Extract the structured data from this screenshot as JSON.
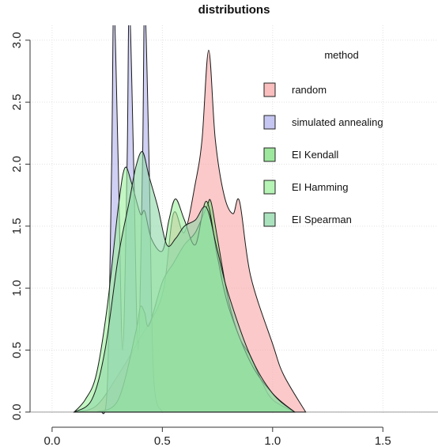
{
  "chart_data": {
    "type": "area",
    "title": "distributions",
    "xlabel": "",
    "ylabel": "",
    "xlim": [
      -0.1,
      1.75
    ],
    "ylim": [
      -0.02,
      3.12
    ],
    "grid": true,
    "x_ticks": [
      "0.0",
      "0.5",
      "1.0",
      "1.5"
    ],
    "x_tick_values": [
      0.0,
      0.5,
      1.0,
      1.5
    ],
    "y_ticks": [
      "0.0",
      "0.5",
      "1.0",
      "1.5",
      "2.0",
      "2.5",
      "3.0"
    ],
    "y_tick_values": [
      0.0,
      0.5,
      1.0,
      1.5,
      2.0,
      2.5,
      3.0
    ],
    "legend": {
      "title": "method",
      "placement": "top-right",
      "entries": [
        "random",
        "simulated annealing",
        "EI Kendall",
        "EI Hamming",
        "EI Spearman"
      ]
    },
    "series": [
      {
        "name": "random",
        "color": "#f8a8a8",
        "x": [
          0.1,
          0.2,
          0.3,
          0.4,
          0.5,
          0.55,
          0.6,
          0.65,
          0.68,
          0.71,
          0.74,
          0.78,
          0.82,
          0.85,
          0.9,
          1.0,
          1.05,
          1.15
        ],
        "y": [
          0.0,
          0.05,
          0.3,
          0.6,
          0.95,
          1.6,
          1.45,
          1.85,
          2.2,
          2.92,
          2.2,
          1.75,
          1.6,
          1.7,
          1.1,
          0.55,
          0.3,
          0.0
        ]
      },
      {
        "name": "simulated annealing",
        "color": "#b3b3ee",
        "x": [
          0.22,
          0.25,
          0.27,
          0.28,
          0.3,
          0.32,
          0.34,
          0.35,
          0.37,
          0.39,
          0.41,
          0.42,
          0.44,
          0.46,
          0.5
        ],
        "y": [
          0.0,
          0.2,
          2.0,
          3.3,
          2.0,
          0.5,
          2.0,
          3.3,
          2.0,
          0.5,
          2.0,
          3.3,
          2.0,
          0.3,
          0.0
        ]
      },
      {
        "name": "EI Kendall",
        "color": "#7ee07e",
        "x": [
          0.2,
          0.3,
          0.38,
          0.4,
          0.42,
          0.44,
          0.5,
          0.55,
          0.6,
          0.65,
          0.7,
          0.72,
          0.75,
          0.8,
          0.85,
          0.9,
          0.95,
          1.0,
          1.1
        ],
        "y": [
          0.0,
          0.1,
          0.65,
          0.85,
          0.8,
          0.7,
          1.05,
          1.2,
          1.35,
          1.45,
          1.65,
          1.7,
          1.4,
          0.9,
          0.6,
          0.45,
          0.25,
          0.1,
          0.0
        ]
      },
      {
        "name": "EI Hamming",
        "color": "#9ef09e",
        "x": [
          0.1,
          0.15,
          0.2,
          0.25,
          0.3,
          0.33,
          0.36,
          0.4,
          0.42,
          0.45,
          0.5,
          0.53,
          0.56,
          0.6,
          0.65,
          0.7,
          0.75,
          0.8,
          0.9,
          1.0,
          1.1
        ],
        "y": [
          0.0,
          0.1,
          0.3,
          0.85,
          1.65,
          1.97,
          1.85,
          1.6,
          1.62,
          1.4,
          1.3,
          1.55,
          1.72,
          1.55,
          1.35,
          1.7,
          1.25,
          0.85,
          0.4,
          0.15,
          0.0
        ]
      },
      {
        "name": "EI Spearman",
        "color": "#8fd8a8",
        "x": [
          0.1,
          0.18,
          0.24,
          0.3,
          0.35,
          0.38,
          0.41,
          0.44,
          0.48,
          0.52,
          0.56,
          0.6,
          0.65,
          0.7,
          0.75,
          0.8,
          0.9,
          1.0,
          1.1
        ],
        "y": [
          0.0,
          0.1,
          0.5,
          1.25,
          1.7,
          1.98,
          2.1,
          1.9,
          1.65,
          1.35,
          1.4,
          1.5,
          1.55,
          1.65,
          1.3,
          0.95,
          0.45,
          0.15,
          0.0
        ]
      }
    ]
  }
}
